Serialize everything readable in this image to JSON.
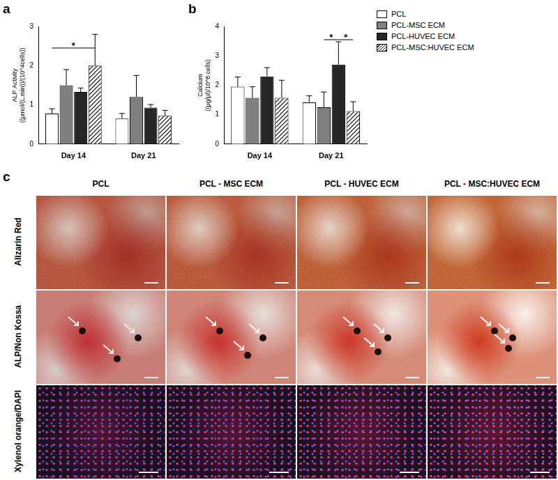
{
  "chart_data": [
    {
      "type": "bar",
      "panel": "a",
      "y_label": [
        "ALP Activity",
        "((μmol/(L.min))/(10^4cells))"
      ],
      "categories": [
        "Day 14",
        "Day 21"
      ],
      "series": [
        {
          "name": "PCL",
          "color": "#ffffff",
          "values": [
            0.78,
            0.65
          ],
          "errors": [
            0.12,
            0.13
          ]
        },
        {
          "name": "PCL-MSC ECM",
          "color": "#7f7f7f",
          "values": [
            1.5,
            1.2
          ],
          "errors": [
            0.4,
            0.55
          ]
        },
        {
          "name": "PCL-HUVEC ECM",
          "color": "#262626",
          "values": [
            1.33,
            0.93
          ],
          "errors": [
            0.1,
            0.08
          ]
        },
        {
          "name": "PCL-MSC:HUVEC ECM",
          "color": "#000000",
          "values": [
            2.0,
            0.72
          ],
          "errors": [
            0.8,
            0.14
          ]
        }
      ],
      "ylim": [
        0,
        3
      ],
      "yticks": [
        0,
        1,
        2,
        3
      ],
      "grid": false,
      "annotations": [
        {
          "text": "*",
          "category": 0,
          "from_series": 0,
          "to_series": 3,
          "y": 2.45
        }
      ]
    },
    {
      "type": "bar",
      "panel": "b",
      "y_label": [
        "Calcium",
        "((μg/μl)/10^8 cells)"
      ],
      "categories": [
        "Day 14",
        "Day 21"
      ],
      "series": [
        {
          "name": "PCL",
          "color": "#ffffff",
          "values": [
            1.95,
            1.42
          ],
          "errors": [
            0.33,
            0.22
          ]
        },
        {
          "name": "PCL-MSC ECM",
          "color": "#7f7f7f",
          "values": [
            1.57,
            1.25
          ],
          "errors": [
            0.38,
            0.52
          ]
        },
        {
          "name": "PCL-HUVEC ECM",
          "color": "#262626",
          "values": [
            2.3,
            2.7
          ],
          "errors": [
            0.3,
            0.78
          ]
        },
        {
          "name": "PCL-MSC:HUVEC ECM",
          "color": "#000000",
          "values": [
            1.57,
            1.12
          ],
          "errors": [
            0.6,
            0.32
          ]
        }
      ],
      "ylim": [
        0,
        4
      ],
      "yticks": [
        0,
        1,
        2,
        3,
        4
      ],
      "grid": false,
      "legend": "right",
      "annotations": [
        {
          "text": "*",
          "category": 1,
          "from_series": 1,
          "to_series": 2,
          "y": 3.55
        },
        {
          "text": "*",
          "category": 1,
          "from_series": 2,
          "to_series": 3,
          "y": 3.55
        }
      ]
    }
  ],
  "image_panel": {
    "panel": "c",
    "columns": [
      "PCL",
      "PCL - MSC ECM",
      "PCL - HUVEC ECM",
      "PCL - MSC:HUVEC ECM"
    ],
    "rows": [
      "Alizarin Red",
      "ALP/Non Kossa",
      "Xylenol orange/DAPI"
    ]
  }
}
